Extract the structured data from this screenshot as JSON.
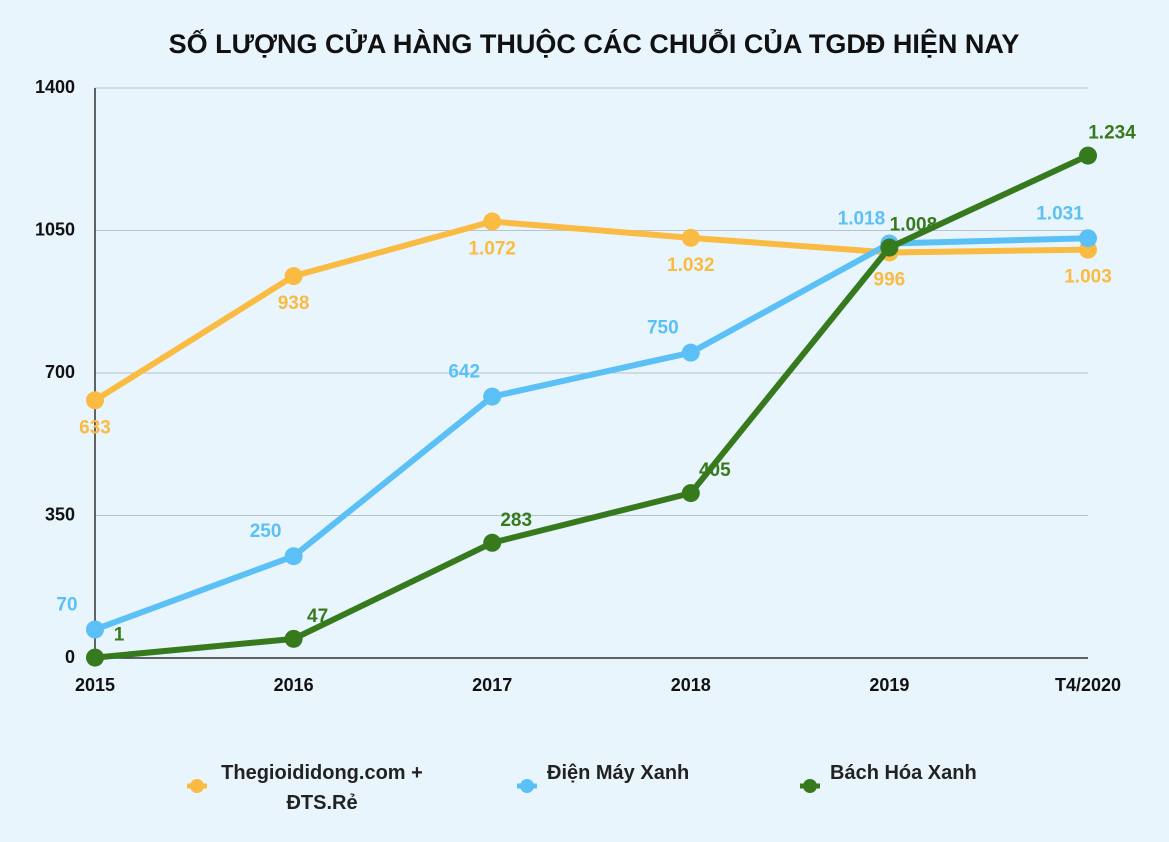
{
  "chart_data": {
    "type": "line",
    "title": "SỐ LƯỢNG CỬA HÀNG THUỘC CÁC CHUỖI CỦA TGDĐ HIỆN NAY",
    "categories": [
      "2015",
      "2016",
      "2017",
      "2018",
      "2019",
      "T4/2020"
    ],
    "series": [
      {
        "name": "Thegioididong.com + ĐTS.Rẻ",
        "color": "#f9bb42",
        "values": [
          633,
          938,
          1072,
          1032,
          996,
          1003
        ],
        "value_labels": [
          "633",
          "938",
          "1.072",
          "1.032",
          "996",
          "1.003"
        ]
      },
      {
        "name": "Điện Máy Xanh",
        "color": "#5bc0f5",
        "values": [
          70,
          250,
          642,
          750,
          1018,
          1031
        ],
        "value_labels": [
          "70",
          "250",
          "642",
          "750",
          "1.018",
          "1.031"
        ]
      },
      {
        "name": "Bách Hóa Xanh",
        "color": "#377a1e",
        "values": [
          1,
          47,
          283,
          405,
          1008,
          1234
        ],
        "value_labels": [
          "1",
          "47",
          "283",
          "405",
          "1.008",
          "1.234"
        ]
      }
    ],
    "ylim": [
      0,
      1400
    ],
    "yticks": [
      0,
      350,
      700,
      1050,
      1400
    ],
    "grid": true,
    "legend": "bottom"
  }
}
